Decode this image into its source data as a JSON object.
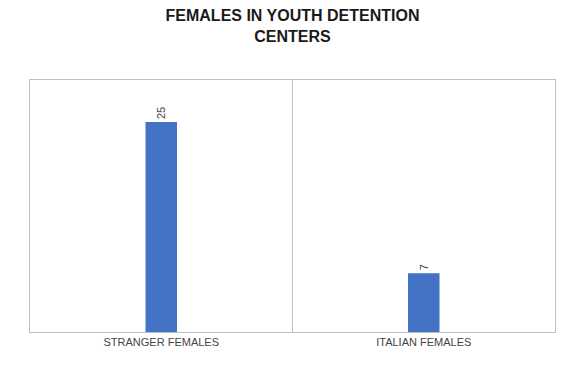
{
  "chart_data": {
    "type": "bar",
    "title": "FEMALES IN YOUTH DETENTION\nCENTERS",
    "categories": [
      "STRANGER FEMALES",
      "ITALIAN FEMALES"
    ],
    "values": [
      25,
      7
    ],
    "color": "#4472C4",
    "ylim": [
      0,
      30
    ],
    "grid": false,
    "data_labels": true,
    "tick_labels": "x"
  }
}
